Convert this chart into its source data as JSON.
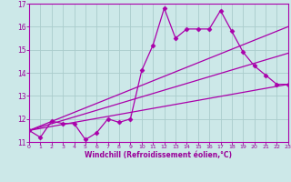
{
  "bg_color": "#cce8e8",
  "grid_color": "#aacccc",
  "line_color": "#aa00aa",
  "marker_color": "#aa00aa",
  "xlabel": "Windchill (Refroidissement éolien,°C)",
  "xlabel_color": "#990099",
  "xtick_color": "#990099",
  "ytick_color": "#990099",
  "ylim": [
    11,
    17
  ],
  "xlim": [
    0,
    23
  ],
  "yticks": [
    11,
    12,
    13,
    14,
    15,
    16,
    17
  ],
  "xticks": [
    0,
    1,
    2,
    3,
    4,
    5,
    6,
    7,
    8,
    9,
    10,
    11,
    12,
    13,
    14,
    15,
    16,
    17,
    18,
    19,
    20,
    21,
    22,
    23
  ],
  "series1_x": [
    0,
    1,
    2,
    3,
    4,
    5,
    6,
    7,
    8,
    9,
    10,
    11,
    12,
    13,
    14,
    15,
    16,
    17,
    18,
    19,
    20,
    21,
    22,
    23
  ],
  "series1_y": [
    11.5,
    11.2,
    11.9,
    11.8,
    11.8,
    11.1,
    11.4,
    12.0,
    11.85,
    12.0,
    14.1,
    15.2,
    16.8,
    15.5,
    15.9,
    15.9,
    15.9,
    16.7,
    15.8,
    14.9,
    14.3,
    13.9,
    13.5,
    13.5
  ],
  "trend1_x": [
    0,
    23
  ],
  "trend1_y": [
    11.5,
    13.5
  ],
  "trend2_x": [
    0,
    23
  ],
  "trend2_y": [
    11.5,
    14.85
  ],
  "trend3_x": [
    0,
    23
  ],
  "trend3_y": [
    11.5,
    16.0
  ]
}
